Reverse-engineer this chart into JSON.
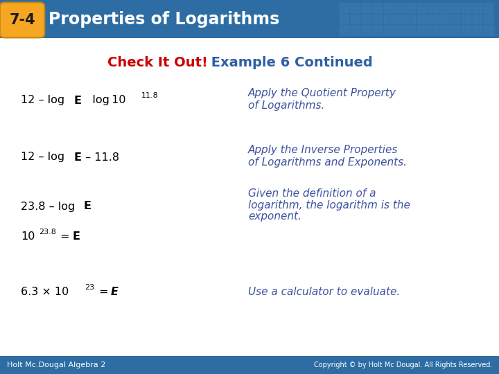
{
  "header_bg_color": "#2E6DA4",
  "header_text": "Properties of Logarithms",
  "header_number": "7-4",
  "badge_color": "#F5A623",
  "badge_border_color": "#C8860A",
  "subheader_red": "Check It Out!",
  "subheader_blue": " Example 6 Continued",
  "subheader_color_red": "#CC0000",
  "subheader_color_blue": "#2E5FA3",
  "bg_color": "#FFFFFF",
  "footer_bg_color": "#2E6DA4",
  "footer_left": "Holt Mc.Dougal Algebra 2",
  "footer_right": "Copyright © by Holt Mc Dougal. All Rights Reserved.",
  "math_color": "#000000",
  "explanation_color": "#3D52A0",
  "tile_color": "#3A7DB4",
  "tile_edge_color": "#5590C0"
}
